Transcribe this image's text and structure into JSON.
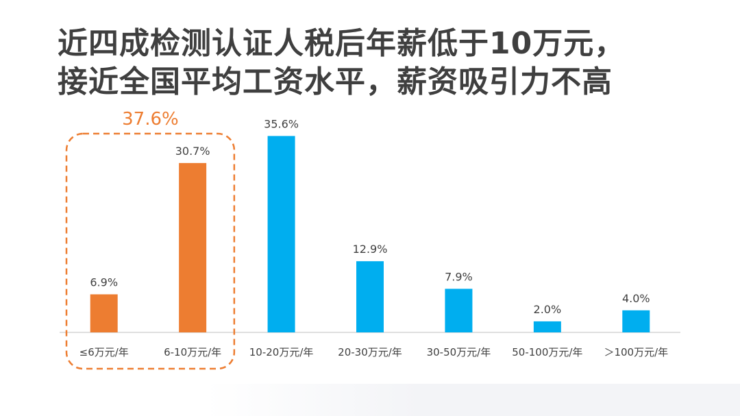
{
  "title": {
    "line1": "近四成检测认证人税后年薪低于10万元，",
    "line2": "接近全国平均工资水平，薪资吸引力不高"
  },
  "colors": {
    "highlight": "#ED7D31",
    "normal": "#00AEEF",
    "label_text": "#404040",
    "axis": "#bfbfbf",
    "title_text": "#3f3f3f"
  },
  "chart_data": {
    "type": "bar",
    "categories": [
      "≤6万元/年",
      "6-10万元/年",
      "10-20万元/年",
      "20-30万元/年",
      "30-50万元/年",
      "50-100万元/年",
      "＞100万元/年"
    ],
    "values": [
      6.9,
      30.7,
      35.6,
      12.9,
      7.9,
      2.0,
      4.0
    ],
    "value_labels": [
      "6.9%",
      "30.7%",
      "35.6%",
      "12.9%",
      "7.9%",
      "2.0%",
      "4.0%"
    ],
    "highlighted_categories": [
      "≤6万元/年",
      "6-10万元/年"
    ],
    "group_annotation": "37.6%",
    "grid": false,
    "legend": "none",
    "ylim": [
      0,
      40
    ],
    "xlabel": "",
    "ylabel": ""
  }
}
